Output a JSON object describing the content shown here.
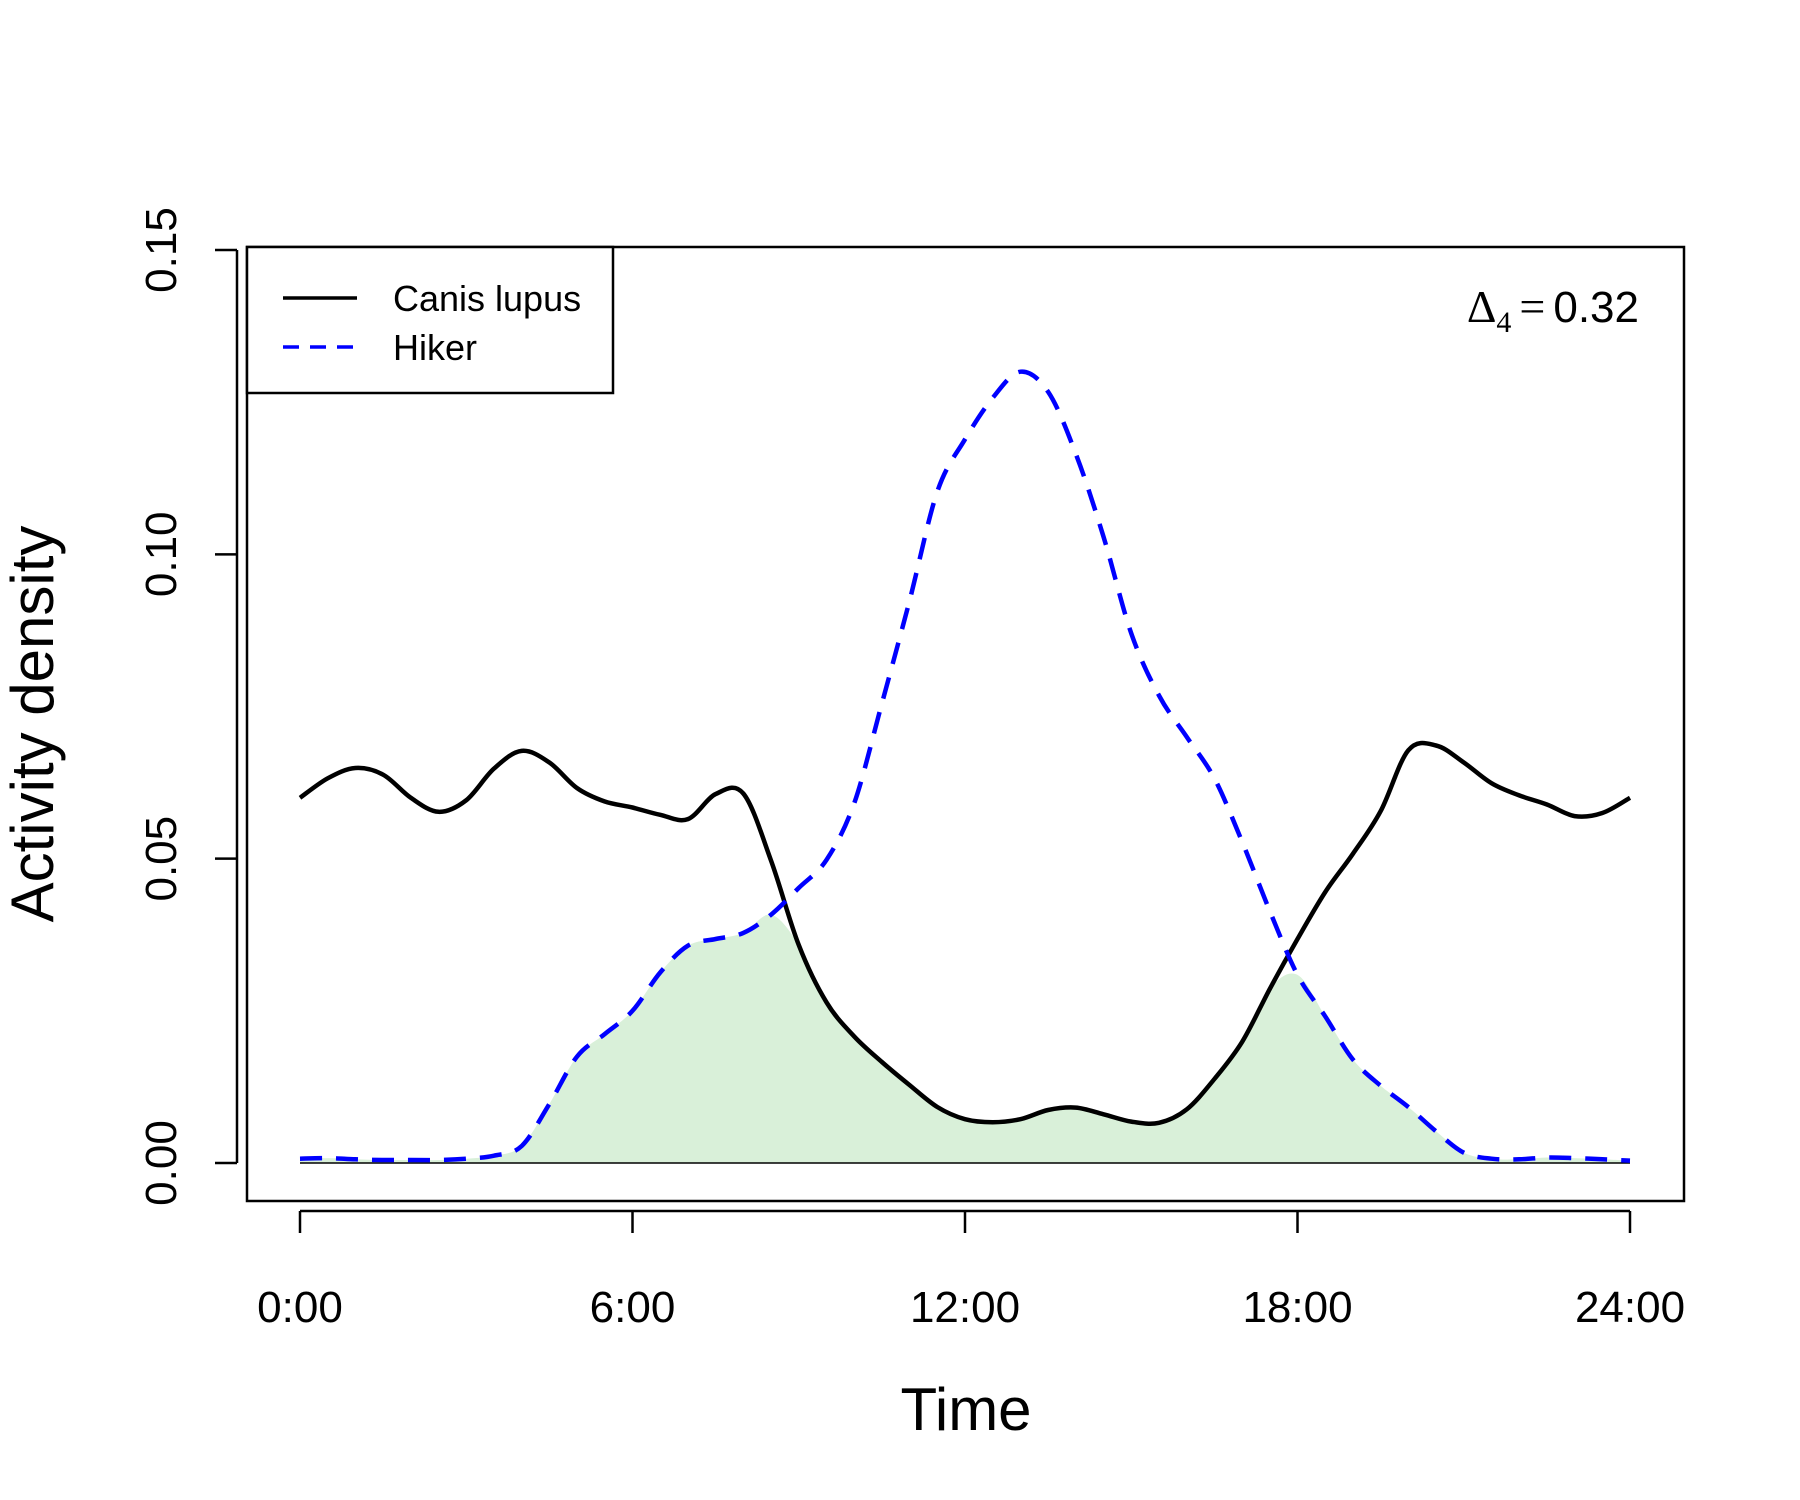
{
  "chart_data": {
    "type": "line",
    "title": "",
    "xlabel": "Time",
    "ylabel": "Activity density",
    "xlim": [
      0,
      24
    ],
    "ylim": [
      0,
      0.15
    ],
    "x_ticks": [
      0,
      6,
      12,
      18,
      24
    ],
    "x_tick_labels": [
      "0:00",
      "6:00",
      "12:00",
      "18:00",
      "24:00"
    ],
    "y_ticks": [
      0.0,
      0.05,
      0.1,
      0.15
    ],
    "y_tick_labels": [
      "0.00",
      "0.05",
      "0.10",
      "0.15"
    ],
    "grid": false,
    "legend_position": "top-left",
    "series": [
      {
        "name": "Canis lupus",
        "color": "#000000",
        "style": "solid",
        "x": [
          0,
          0.5,
          1,
          1.5,
          2,
          2.5,
          3,
          3.5,
          4,
          4.5,
          5,
          5.5,
          6,
          6.5,
          7,
          7.5,
          8,
          8.5,
          9,
          9.5,
          10,
          10.5,
          11,
          11.5,
          12,
          12.5,
          13,
          13.5,
          14,
          14.5,
          15,
          15.5,
          16,
          16.5,
          17,
          17.5,
          18,
          18.5,
          19,
          19.5,
          20,
          20.5,
          21,
          21.5,
          22,
          22.5,
          23,
          23.5,
          24
        ],
        "y": [
          0.06,
          0.0632,
          0.0649,
          0.0638,
          0.06,
          0.0577,
          0.0596,
          0.0648,
          0.0677,
          0.0658,
          0.0616,
          0.0594,
          0.0584,
          0.0572,
          0.0565,
          0.0606,
          0.0607,
          0.0497,
          0.0358,
          0.0264,
          0.0208,
          0.0166,
          0.0128,
          0.0092,
          0.0072,
          0.0067,
          0.0072,
          0.0087,
          0.0091,
          0.008,
          0.0068,
          0.0066,
          0.0088,
          0.0138,
          0.0199,
          0.0286,
          0.0368,
          0.0445,
          0.0508,
          0.0578,
          0.0678,
          0.0686,
          0.0658,
          0.0624,
          0.0604,
          0.0589,
          0.057,
          0.0575,
          0.06
        ]
      },
      {
        "name": "Hiker",
        "color": "#0000ff",
        "style": "dashed",
        "x": [
          0,
          0.5,
          1,
          1.5,
          2,
          2.5,
          3,
          3.5,
          4,
          4.5,
          5,
          5.5,
          6,
          6.5,
          7,
          7.5,
          8,
          8.5,
          9,
          9.5,
          10,
          10.5,
          11,
          11.5,
          12,
          12.5,
          13,
          13.5,
          14,
          14.5,
          15,
          15.5,
          16,
          16.5,
          17,
          17.5,
          18,
          18.5,
          19,
          19.5,
          20,
          20.5,
          21,
          21.5,
          22,
          22.5,
          23,
          23.5,
          24
        ],
        "y": [
          0.0007,
          0.0008,
          0.0006,
          0.0005,
          0.0005,
          0.0005,
          0.0007,
          0.0012,
          0.0028,
          0.0097,
          0.0175,
          0.0212,
          0.025,
          0.0313,
          0.0357,
          0.0368,
          0.0378,
          0.0408,
          0.0452,
          0.0498,
          0.0591,
          0.0755,
          0.0924,
          0.1103,
          0.1189,
          0.1257,
          0.13,
          0.1267,
          0.1165,
          0.1029,
          0.087,
          0.0768,
          0.07,
          0.0632,
          0.0528,
          0.0414,
          0.0309,
          0.0241,
          0.017,
          0.0127,
          0.0092,
          0.0052,
          0.0017,
          0.0007,
          0.0006,
          0.0009,
          0.0008,
          0.0006,
          0.0004
        ]
      }
    ],
    "overlap_fill_color": "#d9f0d9",
    "annotation": {
      "symbol": "Δ",
      "subscript": "4",
      "equals": "=",
      "value": "0.32",
      "position": "top-right"
    }
  }
}
